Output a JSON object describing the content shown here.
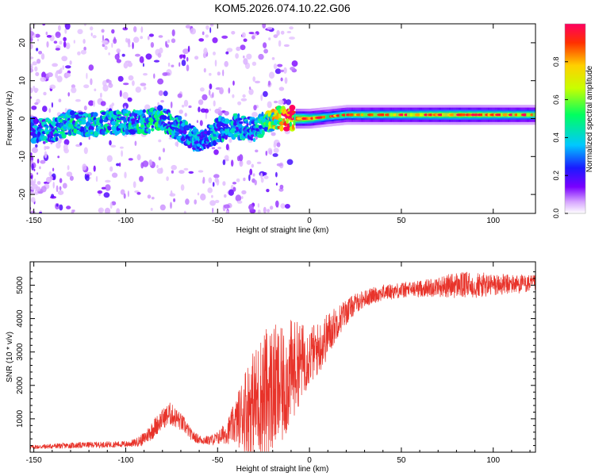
{
  "figure_title": "KOM5.2026.074.10.22.G06",
  "colors": {
    "snr_line": "#e8332a",
    "spec_bg": "#ffffff",
    "axis": "#000000"
  },
  "colorscale": [
    "#ffffff",
    "#d7a6ff",
    "#7a00ff",
    "#1a1aff",
    "#00c8ff",
    "#00ff60",
    "#c8ff00",
    "#ffd000",
    "#ff3000",
    "#ff0060"
  ],
  "chart_data": [
    {
      "type": "heatmap",
      "title": "",
      "xlabel": "Height of straight line (km)",
      "ylabel": "Frequency (Hz)",
      "xlim": [
        -152,
        123
      ],
      "ylim": [
        -25,
        25
      ],
      "xticks": [
        -150,
        -100,
        -50,
        0,
        50,
        100
      ],
      "yticks": [
        -20,
        -10,
        0,
        10,
        20
      ],
      "colorbar": {
        "label": "Normalized spectral amplitude",
        "range": [
          0,
          1
        ],
        "ticks": [
          0.0,
          0.2,
          0.4,
          0.6,
          0.8
        ]
      },
      "ridge": [
        {
          "x": -150,
          "f": -3,
          "a": 0.3
        },
        {
          "x": -140,
          "f": -3,
          "a": 0.35
        },
        {
          "x": -130,
          "f": -1,
          "a": 0.4
        },
        {
          "x": -120,
          "f": -2,
          "a": 0.35
        },
        {
          "x": -110,
          "f": -1,
          "a": 0.4
        },
        {
          "x": -100,
          "f": -1,
          "a": 0.35
        },
        {
          "x": -90,
          "f": -1,
          "a": 0.4
        },
        {
          "x": -80,
          "f": 0,
          "a": 0.4
        },
        {
          "x": -70,
          "f": -3,
          "a": 0.35
        },
        {
          "x": -60,
          "f": -6,
          "a": 0.3
        },
        {
          "x": -50,
          "f": -3,
          "a": 0.35
        },
        {
          "x": -40,
          "f": -2,
          "a": 0.35
        },
        {
          "x": -30,
          "f": -3,
          "a": 0.3
        },
        {
          "x": -20,
          "f": 0,
          "a": 0.6
        },
        {
          "x": -10,
          "f": 0,
          "a": 0.9
        },
        {
          "x": 0,
          "f": 0,
          "a": 0.7
        },
        {
          "x": 10,
          "f": 0.5,
          "a": 0.5
        },
        {
          "x": 20,
          "f": 1,
          "a": 0.55
        },
        {
          "x": 40,
          "f": 1,
          "a": 0.6
        },
        {
          "x": 60,
          "f": 1,
          "a": 0.65
        },
        {
          "x": 80,
          "f": 1,
          "a": 0.7
        },
        {
          "x": 100,
          "f": 1,
          "a": 0.65
        },
        {
          "x": 120,
          "f": 1,
          "a": 0.6
        }
      ]
    },
    {
      "type": "line",
      "title": "",
      "xlabel": "Height of straight line (km)",
      "ylabel": "SNR (10 * v/v)",
      "xlim": [
        -152,
        123
      ],
      "ylim": [
        0,
        5700
      ],
      "xticks": [
        -150,
        -100,
        -50,
        0,
        50,
        100
      ],
      "yticks": [
        1000,
        2000,
        3000,
        4000,
        5000
      ],
      "series": [
        {
          "name": "SNR",
          "x": [
            -152,
            -140,
            -130,
            -120,
            -110,
            -100,
            -95,
            -90,
            -85,
            -80,
            -76,
            -72,
            -68,
            -64,
            -60,
            -55,
            -50,
            -45,
            -40,
            -35,
            -30,
            -25,
            -20,
            -15,
            -10,
            -5,
            0,
            5,
            10,
            15,
            20,
            25,
            30,
            35,
            40,
            50,
            60,
            70,
            80,
            90,
            100,
            110,
            123
          ],
          "values": [
            150,
            180,
            200,
            220,
            230,
            240,
            280,
            400,
            700,
            1000,
            1150,
            1000,
            800,
            500,
            380,
            350,
            420,
            600,
            900,
            1300,
            1500,
            1700,
            1900,
            1900,
            2400,
            2700,
            2900,
            3100,
            3500,
            3900,
            4200,
            4450,
            4600,
            4700,
            4780,
            4850,
            4900,
            4950,
            5000,
            5000,
            5000,
            5030,
            5050
          ],
          "noise": [
            60,
            80,
            90,
            90,
            90,
            100,
            120,
            200,
            300,
            300,
            350,
            300,
            250,
            160,
            140,
            140,
            200,
            350,
            700,
            1300,
            1600,
            2000,
            2000,
            1800,
            1600,
            1200,
            900,
            800,
            700,
            500,
            400,
            300,
            260,
            250,
            240,
            240,
            250,
            300,
            400,
            400,
            350,
            300,
            250
          ]
        }
      ]
    }
  ]
}
